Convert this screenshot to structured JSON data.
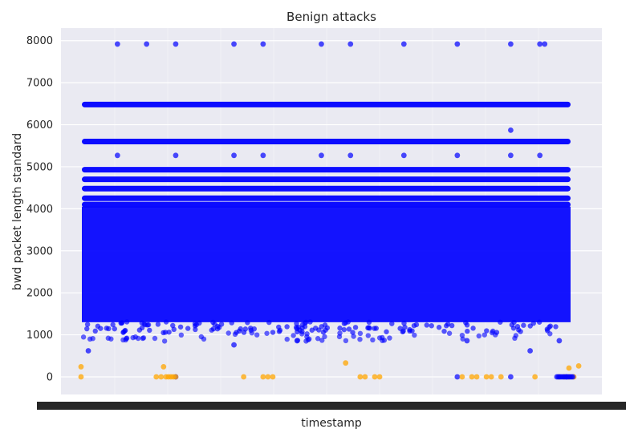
{
  "chart_data": {
    "type": "scatter",
    "title": "Benign attacks",
    "xlabel": "timestamp",
    "ylabel": "bwd packet length standard",
    "xlim": [
      0,
      1
    ],
    "ylim": [
      -420,
      8300
    ],
    "yticks": [
      0,
      1000,
      2000,
      3000,
      4000,
      5000,
      6000,
      7000,
      8000
    ],
    "xtick_labels_note": "overlapping unreadable timestamp labels",
    "grid": true,
    "legend": "none",
    "series": [
      {
        "color": "#0000ff",
        "bands": [
          6480,
          5600,
          4930,
          4700,
          4480,
          4250,
          4100
        ],
        "dense_range": [
          1300,
          4050
        ],
        "outliers": [
          [
            0.07,
            7920
          ],
          [
            0.13,
            7920
          ],
          [
            0.19,
            7920
          ],
          [
            0.31,
            7920
          ],
          [
            0.37,
            7920
          ],
          [
            0.49,
            7920
          ],
          [
            0.55,
            7920
          ],
          [
            0.66,
            7920
          ],
          [
            0.77,
            7920
          ],
          [
            0.88,
            7920
          ],
          [
            0.94,
            7920
          ],
          [
            0.95,
            7920
          ],
          [
            0.07,
            5270
          ],
          [
            0.19,
            5270
          ],
          [
            0.31,
            5270
          ],
          [
            0.37,
            5270
          ],
          [
            0.49,
            5270
          ],
          [
            0.55,
            5270
          ],
          [
            0.66,
            5270
          ],
          [
            0.77,
            5270
          ],
          [
            0.88,
            5270
          ],
          [
            0.94,
            5270
          ],
          [
            0.88,
            5870
          ],
          [
            0.31,
            760
          ],
          [
            0.44,
            860
          ],
          [
            0.79,
            860
          ],
          [
            0.98,
            860
          ],
          [
            0.92,
            620
          ],
          [
            0.01,
            620
          ],
          [
            0.19,
            0
          ],
          [
            0.77,
            0
          ],
          [
            0.88,
            0
          ],
          [
            0.995,
            0
          ]
        ]
      },
      {
        "color": "#ffa500",
        "points": [
          [
            -0.005,
            240
          ],
          [
            -0.005,
            0
          ],
          [
            0.15,
            0
          ],
          [
            0.16,
            0
          ],
          [
            0.165,
            240
          ],
          [
            0.17,
            0
          ],
          [
            0.175,
            0
          ],
          [
            0.18,
            0
          ],
          [
            0.185,
            0
          ],
          [
            0.19,
            0
          ],
          [
            0.33,
            0
          ],
          [
            0.37,
            0
          ],
          [
            0.38,
            0
          ],
          [
            0.39,
            0
          ],
          [
            0.54,
            330
          ],
          [
            0.57,
            0
          ],
          [
            0.58,
            0
          ],
          [
            0.6,
            0
          ],
          [
            0.61,
            0
          ],
          [
            0.78,
            0
          ],
          [
            0.8,
            0
          ],
          [
            0.81,
            0
          ],
          [
            0.83,
            0
          ],
          [
            0.84,
            0
          ],
          [
            0.86,
            0
          ],
          [
            0.93,
            0
          ],
          [
            0.98,
            0
          ],
          [
            0.99,
            0
          ],
          [
            1.0,
            210
          ],
          [
            1.0,
            0
          ],
          [
            1.01,
            0
          ],
          [
            1.02,
            260
          ]
        ]
      }
    ]
  }
}
